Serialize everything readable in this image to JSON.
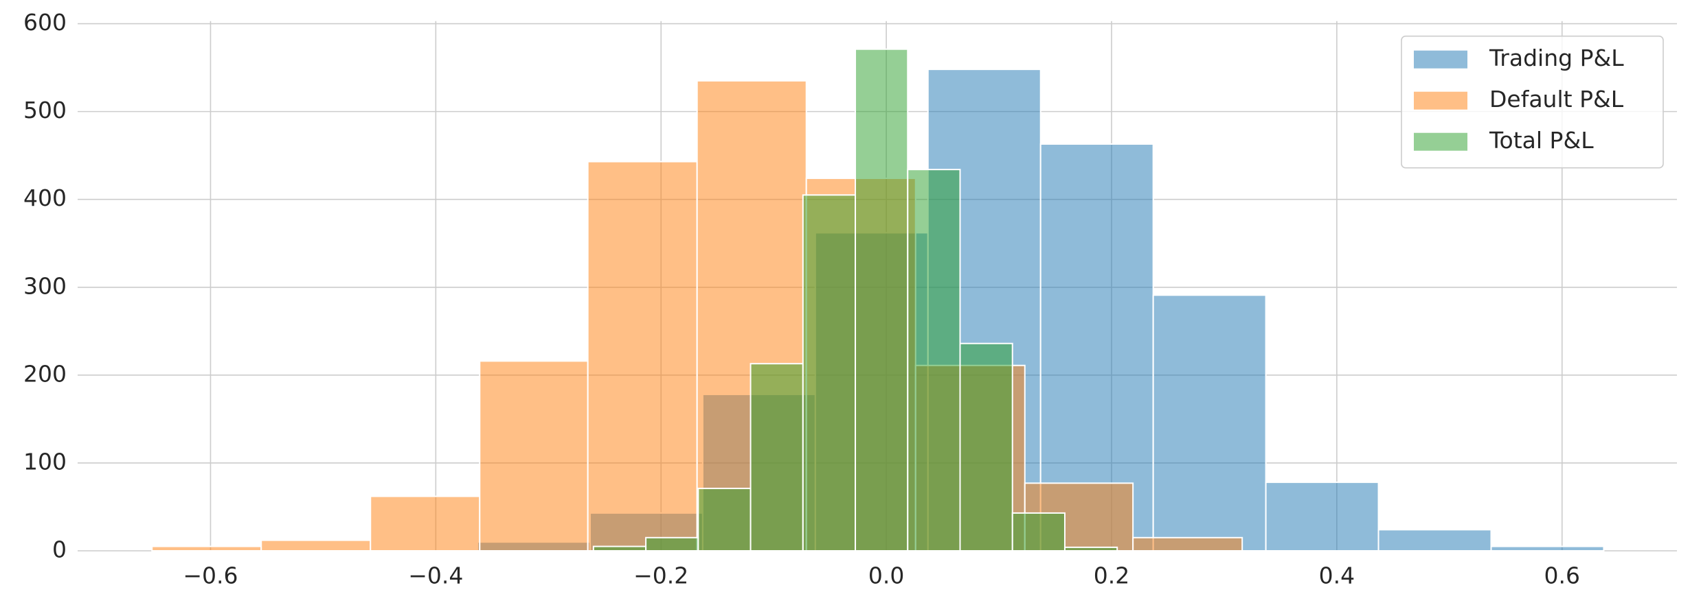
{
  "chart_data": {
    "type": "histogram",
    "series": [
      {
        "name": "Trading P&L",
        "color": "#1f77b4",
        "bins": [
          -0.363,
          -0.263,
          -0.163,
          -0.063,
          0.037,
          0.137,
          0.237,
          0.337,
          0.437,
          0.537,
          0.637
        ],
        "values": [
          10,
          43,
          178,
          362,
          548,
          463,
          291,
          78,
          24,
          5
        ]
      },
      {
        "name": "Default P&L",
        "color": "#ff7f0e",
        "bins": [
          -0.652,
          -0.555,
          -0.458,
          -0.361,
          -0.265,
          -0.168,
          -0.071,
          0.026,
          0.123,
          0.219,
          0.316
        ],
        "values": [
          5,
          12,
          62,
          216,
          443,
          535,
          424,
          211,
          77,
          15
        ]
      },
      {
        "name": "Total P&L",
        "color": "#2ca02c",
        "bins": [
          -0.26,
          -0.2135,
          -0.167,
          -0.1205,
          -0.074,
          -0.0275,
          0.019,
          0.0655,
          0.112,
          0.1585,
          0.205
        ],
        "values": [
          5,
          15,
          71,
          213,
          405,
          571,
          434,
          236,
          43,
          4
        ]
      }
    ],
    "alpha": 0.5,
    "xlim": [
      -0.718,
      0.702
    ],
    "ylim": [
      0,
      603
    ],
    "xticks": [
      {
        "value": -0.6,
        "label": "−0.6"
      },
      {
        "value": -0.4,
        "label": "−0.4"
      },
      {
        "value": -0.2,
        "label": "−0.2"
      },
      {
        "value": 0,
        "label": "0.0"
      },
      0.2,
      0.4,
      0.6
    ],
    "yticks": [
      0,
      100,
      200,
      300,
      400,
      500,
      600
    ],
    "grid": true,
    "legend": "upper right"
  }
}
